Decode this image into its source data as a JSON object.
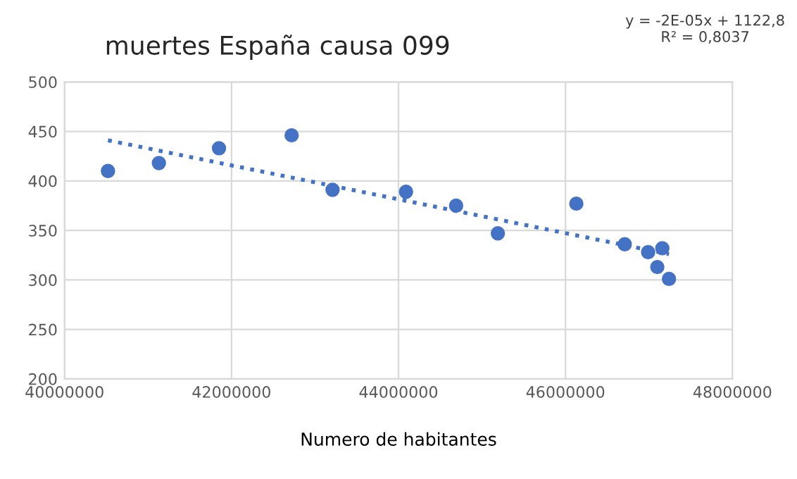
{
  "chart_data": {
    "type": "scatter",
    "title": "muertes España causa 099",
    "xlabel": "Numero de habitantes",
    "annotations": [
      "y = -2E-05x + 1122,8\nR² = 0,8037"
    ],
    "series": [
      {
        "color": "#4472c4",
        "marker": "circle",
        "x": [
          40520000,
          41130000,
          41850000,
          42720000,
          43210000,
          44090000,
          44690000,
          45190000,
          46130000,
          46710000,
          46990000,
          47160000,
          47100000,
          47240000
        ],
        "values": [
          410,
          418,
          433,
          446,
          391,
          389,
          375,
          347,
          377,
          336,
          328,
          332,
          313,
          301
        ]
      },
      {
        "type": "line",
        "color": "#4472c4",
        "line_style": "dotted",
        "x": [
          40520000,
          47240000
        ],
        "values": [
          441,
          326
        ]
      }
    ],
    "xlim": [
      40000000,
      48000000
    ],
    "xticks": [
      40000000,
      42000000,
      44000000,
      46000000,
      48000000
    ],
    "ylim": [
      200,
      500
    ],
    "yticks": [
      200,
      250,
      300,
      350,
      400,
      450,
      500
    ],
    "grid": true
  }
}
